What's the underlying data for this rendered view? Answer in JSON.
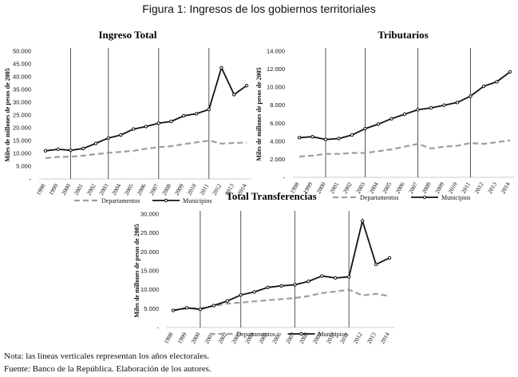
{
  "figure_title": "Figura 1: Ingresos de los gobiernos territoriales",
  "note": "Nota: las líneas verticales representan los años electorales.",
  "source": "Fuente: Banco de la República. Elaboración de los autores.",
  "colors": {
    "departamentos": "#9e9e9e",
    "municipios": "#111111",
    "electoral_line": "#555555"
  },
  "chart_data": [
    {
      "type": "line",
      "title": "Ingreso Total",
      "ylabel": "Miles de millones de pesos de 2005",
      "xlabel": "",
      "x": [
        1998,
        1999,
        2000,
        2001,
        2002,
        2003,
        2004,
        2005,
        2006,
        2007,
        2008,
        2009,
        2010,
        2011,
        2012,
        2013,
        2014
      ],
      "ylim": [
        0,
        50000
      ],
      "yticks": [
        0,
        5000,
        10000,
        15000,
        20000,
        25000,
        30000,
        35000,
        40000,
        45000,
        50000
      ],
      "ytick_labels": [
        "-",
        "5.000",
        "10.000",
        "15.000",
        "20.000",
        "25.000",
        "30.000",
        "35.000",
        "40.000",
        "45.000",
        "50.000"
      ],
      "electoral_years": [
        2000,
        2003,
        2007,
        2011
      ],
      "series": [
        {
          "name": "Departamentos",
          "style": "dashed",
          "values": [
            8200,
            8600,
            8700,
            9100,
            9700,
            10200,
            10600,
            11000,
            11800,
            12400,
            12800,
            13600,
            14300,
            15000,
            13800,
            14100,
            14200
          ]
        },
        {
          "name": "Municipios",
          "style": "solid-markers",
          "values": [
            11000,
            11600,
            11200,
            11900,
            13900,
            16000,
            17200,
            19500,
            20500,
            21800,
            22500,
            24700,
            25500,
            27200,
            43500,
            33000,
            36500
          ]
        }
      ]
    },
    {
      "type": "line",
      "title": "Tributarios",
      "ylabel": "Miles de millones de pesos de 2005",
      "xlabel": "",
      "x": [
        1998,
        1999,
        2000,
        2001,
        2002,
        2003,
        2004,
        2005,
        2006,
        2007,
        2008,
        2009,
        2010,
        2011,
        2012,
        2013,
        2014
      ],
      "ylim": [
        0,
        14000
      ],
      "yticks": [
        0,
        2000,
        4000,
        6000,
        8000,
        10000,
        12000,
        14000
      ],
      "ytick_labels": [
        "-",
        "2.000",
        "4.000",
        "6.000",
        "8.000",
        "10.000",
        "12.000",
        "14.000"
      ],
      "electoral_years": [
        2000,
        2003,
        2007,
        2011
      ],
      "series": [
        {
          "name": "Departamentos",
          "style": "dashed",
          "values": [
            2300,
            2400,
            2600,
            2600,
            2700,
            2700,
            2900,
            3100,
            3400,
            3700,
            3200,
            3400,
            3500,
            3800,
            3700,
            3900,
            4100
          ]
        },
        {
          "name": "Municipios",
          "style": "solid-markers",
          "values": [
            4400,
            4500,
            4200,
            4300,
            4700,
            5400,
            5900,
            6500,
            7000,
            7500,
            7700,
            8000,
            8300,
            9000,
            10100,
            10600,
            11700
          ]
        }
      ]
    },
    {
      "type": "line",
      "title": "Total Transferencias",
      "ylabel": "Miles de millones de pesos de 2005",
      "xlabel": "",
      "x": [
        1998,
        1999,
        2000,
        2001,
        2002,
        2003,
        2004,
        2005,
        2006,
        2007,
        2008,
        2009,
        2010,
        2011,
        2012,
        2013,
        2014
      ],
      "ylim": [
        0,
        30000
      ],
      "yticks": [
        0,
        5000,
        10000,
        15000,
        20000,
        25000,
        30000
      ],
      "ytick_labels": [
        "-",
        "5.000",
        "10.000",
        "15.000",
        "20.000",
        "25.000",
        "30.000"
      ],
      "electoral_years": [
        2000,
        2003,
        2007,
        2011
      ],
      "series": [
        {
          "name": "Departamentos",
          "style": "dashed",
          "values": [
            4600,
            5000,
            5100,
            5700,
            6300,
            6600,
            6900,
            7200,
            7500,
            7800,
            8300,
            9100,
            9500,
            10000,
            8500,
            8900,
            8300
          ]
        },
        {
          "name": "Municipios",
          "style": "solid-markers",
          "values": [
            4500,
            5200,
            4800,
            5800,
            7000,
            8600,
            9400,
            10600,
            11000,
            11300,
            12200,
            13600,
            13100,
            13400,
            28200,
            16700,
            18400
          ]
        }
      ]
    }
  ]
}
